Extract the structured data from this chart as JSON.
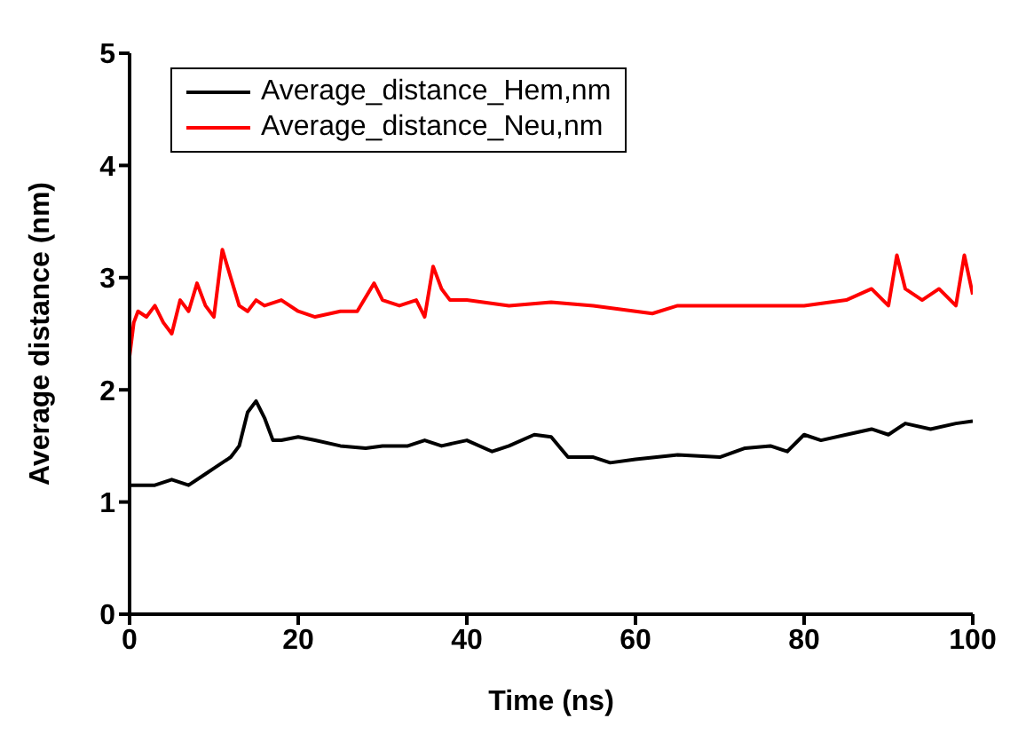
{
  "chart_data": {
    "type": "line",
    "xlabel": "Time (ns)",
    "ylabel": "Average distance (nm)",
    "xlim": [
      0,
      100
    ],
    "xticks": [
      0,
      20,
      40,
      60,
      80,
      100
    ],
    "ylim": [
      0,
      5
    ],
    "yticks": [
      0,
      1,
      2,
      3,
      4,
      5
    ],
    "grid": false,
    "legend": "top left",
    "marker": "none",
    "line_style": "solid",
    "series": [
      {
        "name": "Average_distance_Hem,nm",
        "color": "#000000",
        "x": [
          0,
          3,
          5,
          7,
          9,
          10,
          12,
          13,
          14,
          15,
          16,
          17,
          18,
          20,
          22,
          25,
          28,
          30,
          33,
          35,
          37,
          40,
          43,
          45,
          48,
          50,
          52,
          55,
          57,
          60,
          65,
          70,
          73,
          76,
          78,
          80,
          82,
          85,
          88,
          90,
          92,
          95,
          98,
          100
        ],
        "values": [
          1.15,
          1.15,
          1.2,
          1.15,
          1.25,
          1.3,
          1.4,
          1.5,
          1.8,
          1.9,
          1.75,
          1.55,
          1.55,
          1.58,
          1.55,
          1.5,
          1.48,
          1.5,
          1.5,
          1.55,
          1.5,
          1.55,
          1.45,
          1.5,
          1.6,
          1.58,
          1.4,
          1.4,
          1.35,
          1.38,
          1.42,
          1.4,
          1.48,
          1.5,
          1.45,
          1.6,
          1.55,
          1.6,
          1.65,
          1.6,
          1.7,
          1.65,
          1.7,
          1.72
        ]
      },
      {
        "name": "Average_distance_Neu,nm",
        "color": "#ff0000",
        "x": [
          0,
          0.5,
          1,
          2,
          3,
          4,
          5,
          6,
          7,
          8,
          9,
          10,
          11,
          12,
          13,
          14,
          15,
          16,
          18,
          20,
          22,
          25,
          27,
          29,
          30,
          32,
          34,
          35,
          36,
          37,
          38,
          40,
          45,
          50,
          55,
          60,
          62,
          65,
          70,
          75,
          80,
          85,
          88,
          90,
          91,
          92,
          94,
          96,
          98,
          99,
          100
        ],
        "values": [
          2.3,
          2.6,
          2.7,
          2.65,
          2.75,
          2.6,
          2.5,
          2.8,
          2.7,
          2.95,
          2.75,
          2.65,
          3.25,
          3.0,
          2.75,
          2.7,
          2.8,
          2.75,
          2.8,
          2.7,
          2.65,
          2.7,
          2.7,
          2.95,
          2.8,
          2.75,
          2.8,
          2.65,
          3.1,
          2.9,
          2.8,
          2.8,
          2.75,
          2.78,
          2.75,
          2.7,
          2.68,
          2.75,
          2.75,
          2.75,
          2.75,
          2.8,
          2.9,
          2.75,
          3.2,
          2.9,
          2.8,
          2.9,
          2.75,
          3.2,
          2.85
        ]
      }
    ]
  }
}
